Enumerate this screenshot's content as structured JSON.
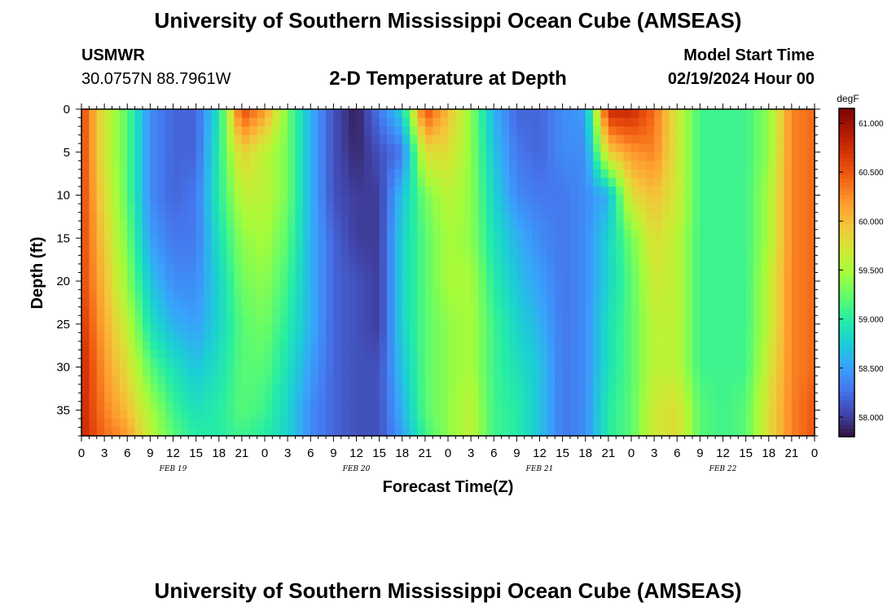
{
  "header": {
    "title": "University of Southern Mississippi Ocean Cube (AMSEAS)",
    "station": "USMWR",
    "coords": "30.0757N  88.7961W",
    "plot_title": "2-D Temperature at Depth",
    "model_label": "Model Start Time",
    "model_time": "02/19/2024 Hour 00"
  },
  "footer": {
    "title": "University of Southern Mississippi Ocean Cube (AMSEAS)"
  },
  "colors": {
    "scale": [
      "#30123b",
      "#4145ab",
      "#4675ed",
      "#39a2fc",
      "#1bcfd4",
      "#24eca6",
      "#61fc6c",
      "#a4fc3b",
      "#d1e834",
      "#f3c63a",
      "#fe9b2d",
      "#f36315",
      "#d93806",
      "#b11901",
      "#7a0403"
    ]
  },
  "chart_data": {
    "type": "heatmap",
    "title": "2-D Temperature at Depth",
    "xlabel": "Forecast Time(Z)",
    "ylabel": "Depth (ft)",
    "x_ticks": [
      "0",
      "3",
      "6",
      "9",
      "12",
      "15",
      "18",
      "21",
      "0",
      "3",
      "6",
      "9",
      "12",
      "15",
      "18",
      "21",
      "0",
      "3",
      "6",
      "9",
      "12",
      "15",
      "18",
      "21",
      "0",
      "3",
      "6",
      "9",
      "12",
      "15",
      "18",
      "21",
      "0"
    ],
    "x_hours": [
      0,
      3,
      6,
      9,
      12,
      15,
      18,
      21,
      24,
      27,
      30,
      33,
      36,
      39,
      42,
      45,
      48,
      51,
      54,
      57,
      60,
      63,
      66,
      69,
      72,
      75,
      78,
      81,
      84,
      87,
      90,
      93,
      96
    ],
    "day_labels": [
      "FEB 19",
      "FEB 20",
      "FEB 21",
      "FEB 22"
    ],
    "day_label_hours": [
      12,
      36,
      60,
      84
    ],
    "x_range_hours": [
      0,
      96
    ],
    "y_ticks": [
      0,
      5,
      10,
      15,
      20,
      25,
      30,
      35
    ],
    "y_range_ft": [
      0,
      38
    ],
    "colorbar": {
      "unit": "degF",
      "ticks": [
        "61.000",
        "60.500",
        "60.000",
        "59.500",
        "59.000",
        "58.500",
        "58.000"
      ],
      "tick_values": [
        61.0,
        60.5,
        60.0,
        59.5,
        59.0,
        58.5,
        58.0
      ],
      "range": [
        57.8,
        61.15
      ]
    },
    "depth_control_ft": [
      0,
      5,
      10,
      15,
      20,
      25,
      30,
      35,
      38
    ],
    "time_control_hours": [
      0,
      3,
      6,
      9,
      12,
      15,
      18,
      21,
      24,
      27,
      30,
      33,
      36,
      39,
      42,
      45,
      48,
      51,
      54,
      57,
      60,
      63,
      66,
      69,
      72,
      75,
      78,
      81,
      84,
      87,
      90,
      93,
      96
    ],
    "temperature_degF": [
      [
        60.6,
        60.6,
        60.6,
        60.6,
        60.6,
        60.7,
        60.8,
        60.8,
        60.8
      ],
      [
        59.7,
        59.7,
        59.8,
        59.9,
        60.0,
        60.1,
        60.2,
        60.3,
        60.4
      ],
      [
        59.2,
        59.2,
        59.2,
        59.3,
        59.4,
        59.6,
        59.8,
        60.0,
        60.2
      ],
      [
        58.4,
        58.4,
        58.4,
        58.5,
        58.7,
        58.9,
        59.2,
        59.5,
        59.6
      ],
      [
        58.2,
        58.2,
        58.2,
        58.3,
        58.4,
        58.6,
        58.9,
        59.1,
        59.2
      ],
      [
        58.2,
        58.2,
        58.3,
        58.3,
        58.4,
        58.5,
        58.7,
        58.9,
        59.0
      ],
      [
        58.9,
        59.0,
        59.0,
        58.9,
        58.8,
        58.8,
        58.9,
        59.0,
        59.0
      ],
      [
        60.6,
        59.9,
        59.6,
        59.4,
        59.3,
        59.2,
        59.2,
        59.2,
        59.1
      ],
      [
        60.2,
        59.6,
        59.6,
        59.5,
        59.4,
        59.3,
        59.2,
        59.1,
        59.0
      ],
      [
        59.3,
        59.3,
        59.3,
        59.2,
        59.1,
        59.0,
        58.9,
        58.8,
        58.8
      ],
      [
        58.6,
        58.6,
        58.6,
        58.6,
        58.6,
        58.6,
        58.5,
        58.4,
        58.4
      ],
      [
        58.1,
        58.1,
        58.1,
        58.2,
        58.2,
        58.2,
        58.2,
        58.2,
        58.2
      ],
      [
        57.85,
        57.9,
        58.0,
        58.0,
        58.1,
        58.1,
        58.1,
        58.1,
        58.1
      ],
      [
        58.3,
        58.1,
        58.0,
        58.0,
        58.0,
        58.0,
        58.1,
        58.1,
        58.1
      ],
      [
        58.8,
        58.3,
        58.7,
        58.8,
        58.8,
        58.8,
        58.7,
        58.6,
        58.5
      ],
      [
        60.6,
        59.8,
        59.3,
        59.2,
        59.2,
        59.2,
        59.2,
        59.2,
        59.1
      ],
      [
        60.0,
        59.8,
        59.6,
        59.5,
        59.5,
        59.4,
        59.4,
        59.4,
        59.4
      ],
      [
        59.4,
        59.4,
        59.4,
        59.4,
        59.5,
        59.5,
        59.5,
        59.6,
        59.6
      ],
      [
        58.6,
        58.7,
        58.8,
        58.9,
        59.0,
        59.1,
        59.1,
        59.1,
        59.1
      ],
      [
        58.2,
        58.3,
        58.4,
        58.6,
        58.7,
        58.8,
        58.9,
        59.0,
        59.0
      ],
      [
        58.2,
        58.2,
        58.3,
        58.4,
        58.5,
        58.6,
        58.7,
        58.7,
        58.7
      ],
      [
        58.4,
        58.4,
        58.3,
        58.3,
        58.3,
        58.3,
        58.3,
        58.3,
        58.3
      ],
      [
        58.5,
        58.4,
        58.4,
        58.4,
        58.4,
        58.4,
        58.4,
        58.4,
        58.4
      ],
      [
        60.8,
        59.9,
        58.6,
        58.8,
        58.8,
        58.9,
        58.9,
        59.0,
        59.0
      ],
      [
        60.8,
        60.2,
        59.8,
        59.3,
        59.2,
        59.2,
        59.2,
        59.2,
        59.2
      ],
      [
        60.4,
        60.3,
        60.0,
        59.8,
        59.7,
        59.6,
        59.6,
        59.7,
        59.7
      ],
      [
        59.7,
        59.7,
        59.7,
        59.6,
        59.6,
        59.6,
        59.6,
        59.8,
        59.8
      ],
      [
        59.1,
        59.1,
        59.1,
        59.1,
        59.1,
        59.1,
        59.1,
        59.2,
        59.2
      ],
      [
        59.1,
        59.1,
        59.1,
        59.1,
        59.1,
        59.1,
        59.1,
        59.1,
        59.1
      ],
      [
        59.1,
        59.1,
        59.1,
        59.1,
        59.1,
        59.1,
        59.1,
        59.2,
        59.2
      ],
      [
        59.4,
        59.4,
        59.5,
        59.5,
        59.6,
        59.6,
        59.7,
        59.8,
        59.8
      ],
      [
        60.3,
        60.3,
        60.3,
        60.3,
        60.3,
        60.3,
        60.3,
        60.3,
        60.3
      ],
      [
        60.4,
        60.4,
        60.4,
        60.4,
        60.4,
        60.4,
        60.4,
        60.5,
        60.5
      ]
    ]
  }
}
